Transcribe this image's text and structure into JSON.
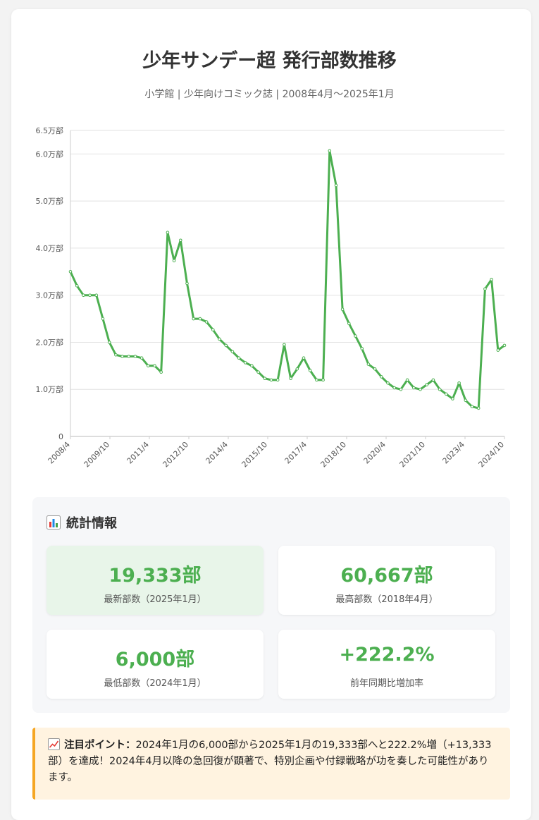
{
  "page": {
    "title": "少年サンデー超 発行部数推移",
    "subtitle": "小学館 | 少年向けコミック誌 | 2008年4月〜2025年1月"
  },
  "chart_data": {
    "type": "line",
    "x_tick_labels": [
      "2008/4",
      "2009/10",
      "2011/4",
      "2012/10",
      "2014/4",
      "2015/10",
      "2017/4",
      "2018/10",
      "2020/4",
      "2021/10",
      "2023/4",
      "2024/10"
    ],
    "y_tick_labels": [
      "0",
      "1.0万部",
      "2.0万部",
      "3.0万部",
      "4.0万部",
      "5.0万部",
      "6.0万部",
      "6.5万部"
    ],
    "y_tick_values": [
      0,
      10000,
      20000,
      30000,
      40000,
      50000,
      60000,
      65000
    ],
    "ylim": [
      0,
      65000
    ],
    "grid": true,
    "legend": "none",
    "series": [
      {
        "color": "#4caf50",
        "values": [
          35000,
          32000,
          30000,
          30000,
          30000,
          25000,
          20000,
          17333,
          17000,
          17000,
          17000,
          16667,
          15000,
          15000,
          13667,
          43333,
          37333,
          41667,
          32500,
          25000,
          25000,
          24333,
          22667,
          20667,
          19333,
          18000,
          16667,
          15667,
          15000,
          13667,
          12333,
          12000,
          12000,
          19500,
          12333,
          14333,
          16667,
          14000,
          12000,
          12000,
          60667,
          53333,
          27000,
          24000,
          21333,
          18667,
          15333,
          14333,
          12667,
          11333,
          10333,
          10000,
          12000,
          10333,
          10000,
          11000,
          12000,
          10000,
          9000,
          8000,
          11333,
          7667,
          6333,
          6000,
          31333,
          33333,
          18333,
          19333
        ]
      }
    ]
  },
  "stats": {
    "title": "統計情報",
    "icon": "bar-chart-icon",
    "items": [
      {
        "value": "19,333部",
        "label": "最新部数（2025年1月）"
      },
      {
        "value": "60,667部",
        "label": "最高部数（2018年4月）"
      },
      {
        "value": "6,000部",
        "label": "最低部数（2024年1月）"
      },
      {
        "value": "+222.2%",
        "label": "前年同期比増加率"
      }
    ]
  },
  "note": {
    "icon": "trend-up-icon",
    "heading": "注目ポイント：",
    "text": "2024年1月の6,000部から2025年1月の19,333部へと222.2%増（+13,333部）を達成！2024年4月以降の急回復が顕著で、特別企画や付録戦略が功を奏した可能性があります。"
  },
  "colors": {
    "accent": "#4caf50",
    "highlight_bg": "#e8f5e9",
    "note_bg": "#fff3e0",
    "note_border": "#f5a623"
  }
}
